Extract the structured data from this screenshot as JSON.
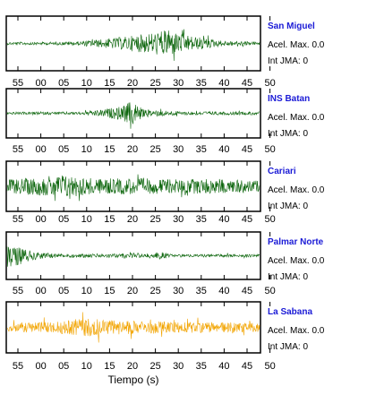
{
  "chart_data": {
    "type": "line",
    "xlabel": "Tiempo (s)",
    "x_tick_labels": [
      "55",
      "00",
      "05",
      "10",
      "15",
      "20",
      "25",
      "30",
      "35",
      "40",
      "45",
      "50"
    ],
    "stations": [
      {
        "name": "San Miguel",
        "accel_label": "Acel. Max. 0.0",
        "jma_label": "Int JMA: 0",
        "color": "#0a640a",
        "name_color": "#1a1ad6",
        "envelope": [
          [
            0,
            0.1
          ],
          [
            0.15,
            0.1
          ],
          [
            0.3,
            0.15
          ],
          [
            0.45,
            0.45
          ],
          [
            0.55,
            0.7
          ],
          [
            0.63,
            0.95
          ],
          [
            0.72,
            0.55
          ],
          [
            0.85,
            0.2
          ],
          [
            1,
            0.12
          ]
        ]
      },
      {
        "name": "INS Batan",
        "accel_label": "Acel. Max. 0.0",
        "jma_label": "Int JMA: 0",
        "color": "#0a640a",
        "name_color": "#1a1ad6",
        "envelope": [
          [
            0,
            0.1
          ],
          [
            0.3,
            0.12
          ],
          [
            0.38,
            0.3
          ],
          [
            0.45,
            0.55
          ],
          [
            0.5,
            1.0
          ],
          [
            0.54,
            0.3
          ],
          [
            0.7,
            0.15
          ],
          [
            1,
            0.12
          ]
        ]
      },
      {
        "name": "Cariari",
        "accel_label": "Acel. Max. 0.0",
        "jma_label": "Int JMA: 0",
        "color": "#0a640a",
        "name_color": "#1a1ad6",
        "envelope": [
          [
            0,
            0.55
          ],
          [
            0.15,
            0.75
          ],
          [
            0.22,
            0.95
          ],
          [
            0.35,
            0.6
          ],
          [
            0.5,
            0.65
          ],
          [
            0.65,
            0.55
          ],
          [
            0.8,
            0.6
          ],
          [
            1,
            0.45
          ]
        ]
      },
      {
        "name": "Palmar Norte",
        "accel_label": "Acel. Max. 0.0",
        "jma_label": "Int JMA: 0",
        "color": "#0a640a",
        "name_color": "#1a1ad6",
        "envelope": [
          [
            0,
            1.0
          ],
          [
            0.04,
            0.8
          ],
          [
            0.1,
            0.35
          ],
          [
            0.2,
            0.15
          ],
          [
            0.55,
            0.18
          ],
          [
            0.6,
            0.3
          ],
          [
            0.65,
            0.12
          ],
          [
            1,
            0.12
          ]
        ]
      },
      {
        "name": "La Sabana",
        "accel_label": "Acel. Max. 0.0",
        "jma_label": "Int JMA: 0",
        "color": "#f2a400",
        "name_color": "#1a1ad6",
        "envelope": [
          [
            0,
            0.35
          ],
          [
            0.2,
            0.45
          ],
          [
            0.32,
            0.75
          ],
          [
            0.4,
            0.55
          ],
          [
            0.6,
            0.45
          ],
          [
            0.8,
            0.4
          ],
          [
            1,
            0.35
          ]
        ]
      }
    ]
  }
}
